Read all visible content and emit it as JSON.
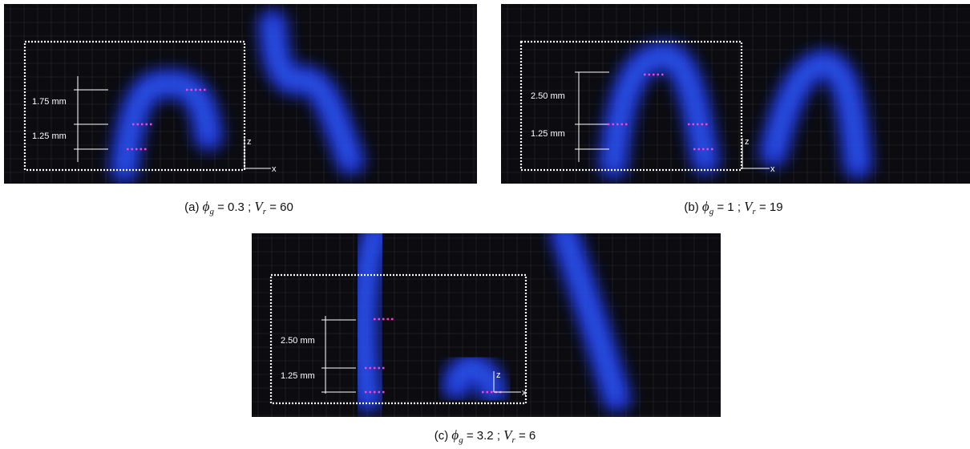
{
  "panels": [
    {
      "scale_labels": [
        "1.75 mm",
        "1.25 mm"
      ],
      "axis_labels": [
        "z",
        "x"
      ],
      "caption": {
        "label": "(a)",
        "var1": "ϕ",
        "sub1": "g",
        "val1": "= 0.3",
        "sep": ";",
        "var2": "V",
        "sub2": "r",
        "val2": "= 60"
      }
    },
    {
      "scale_labels": [
        "2.50 mm",
        "1.25 mm"
      ],
      "axis_labels": [
        "z",
        "x"
      ],
      "caption": {
        "label": "(b)",
        "var1": "ϕ",
        "sub1": "g",
        "val1": "= 1",
        "sep": ";",
        "var2": "V",
        "sub2": "r",
        "val2": "= 19"
      }
    },
    {
      "scale_labels": [
        "2.50 mm",
        "1.25 mm"
      ],
      "axis_labels": [
        "z",
        "x"
      ],
      "caption": {
        "label": "(c)",
        "var1": "ϕ",
        "sub1": "g",
        "val1": "= 3.2",
        "sep": ";",
        "var2": "V",
        "sub2": "r",
        "val2": "= 6"
      }
    }
  ]
}
